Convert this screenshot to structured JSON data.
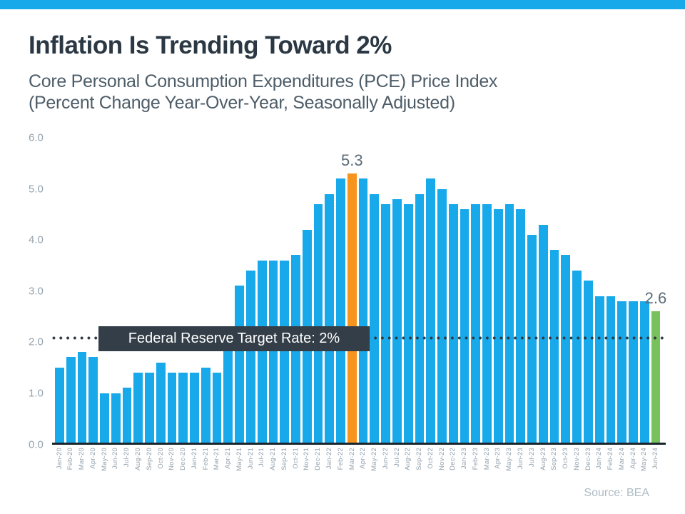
{
  "page": {
    "title": "Inflation Is Trending Toward 2%",
    "subtitle_line1": "Core Personal Consumption Expenditures (PCE) Price Index",
    "subtitle_line2": "(Percent Change Year-Over-Year, Seasonally Adjusted)",
    "source": "Source: BEA",
    "accent_color": "#17a9ea"
  },
  "chart_data": {
    "type": "bar",
    "title": "Inflation Is Trending Toward 2%",
    "subtitle": "Core Personal Consumption Expenditures (PCE) Price Index (Percent Change Year-Over-Year, Seasonally Adjusted)",
    "xlabel": "",
    "ylabel": "",
    "ylim": [
      0,
      6
    ],
    "y_ticks": [
      "6.0",
      "5.0",
      "4.0",
      "3.0",
      "2.0",
      "1.0",
      "0.0"
    ],
    "grid": false,
    "legend": "none",
    "bar_color": "#17a9ea",
    "categories": [
      "Jan-20",
      "Feb-20",
      "Mar-20",
      "Apr-20",
      "May-20",
      "Jun-20",
      "Jul-20",
      "Aug-20",
      "Sep-20",
      "Oct-20",
      "Nov-20",
      "Dec-20",
      "Jan-21",
      "Feb-21",
      "Mar-21",
      "Apr-21",
      "May-21",
      "Jun-21",
      "Jul-21",
      "Aug-21",
      "Sep-21",
      "Oct-21",
      "Nov-21",
      "Dec-21",
      "Jan-22",
      "Feb-22",
      "Mar-22",
      "Apr-22",
      "May-22",
      "Jun-22",
      "Jul-22",
      "Aug-22",
      "Sep-22",
      "Oct-22",
      "Nov-22",
      "Dec-22",
      "Jan-23",
      "Feb-23",
      "Mar-23",
      "Apr-23",
      "May-23",
      "Jun-23",
      "Jul-23",
      "Aug-23",
      "Sep-23",
      "Oct-23",
      "Nov-23",
      "Dec-23",
      "Jan-24",
      "Feb-24",
      "Mar-24",
      "Apr-24",
      "May-24",
      "Jun-24"
    ],
    "values": [
      1.5,
      1.7,
      1.8,
      1.7,
      1.0,
      1.0,
      1.1,
      1.4,
      1.4,
      1.6,
      1.4,
      1.4,
      1.4,
      1.5,
      1.4,
      2.0,
      3.1,
      3.4,
      3.6,
      3.6,
      3.6,
      3.7,
      4.2,
      4.7,
      4.9,
      5.2,
      5.3,
      5.2,
      4.9,
      4.7,
      4.8,
      4.7,
      4.9,
      5.2,
      5.0,
      4.7,
      4.6,
      4.7,
      4.7,
      4.6,
      4.7,
      4.6,
      4.1,
      4.3,
      3.8,
      3.7,
      3.4,
      3.2,
      2.9,
      2.9,
      2.8,
      2.8,
      2.8,
      2.6
    ],
    "highlights": {
      "Mar-22": {
        "color": "#f7941e",
        "label": "5.3"
      },
      "Jun-24": {
        "color": "#77c25d",
        "label": "2.6"
      }
    },
    "target_line": {
      "value": 2.0,
      "label": "Federal Reserve Target Rate: 2%",
      "line_color": "#2e3a44",
      "box_color": "#333e48"
    }
  }
}
